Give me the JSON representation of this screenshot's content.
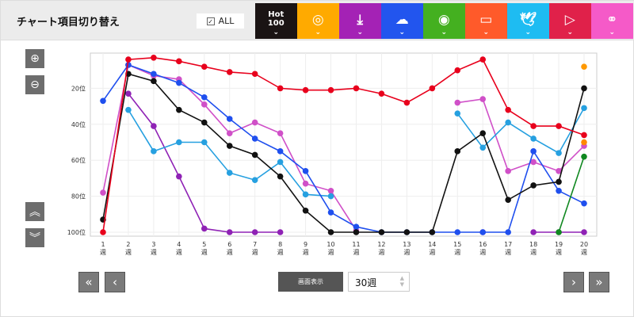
{
  "header": {
    "title": "チャート項目切り替え",
    "all_label": "ALL",
    "all_checked": true
  },
  "tabs": [
    {
      "label": "Hot\n100",
      "icon": "hot100",
      "color": "#1a1414"
    },
    {
      "icon": "cd-icon",
      "color": "#ffaa00"
    },
    {
      "icon": "download-icon",
      "color": "#a422b5"
    },
    {
      "icon": "streaming-icon",
      "color": "#2255ee"
    },
    {
      "icon": "radio-icon",
      "color": "#44b020"
    },
    {
      "icon": "video-cd-icon",
      "color": "#ff5a2a"
    },
    {
      "icon": "twitter-icon",
      "color": "#1ebcf2"
    },
    {
      "icon": "youtube-icon",
      "color": "#e0214a"
    },
    {
      "icon": "lookup-icon",
      "color": "#f55ac8"
    }
  ],
  "controls": {
    "display_label": "画面表示",
    "weeks_value": "30週"
  },
  "chart_data": {
    "type": "line",
    "x": [
      1,
      2,
      3,
      4,
      5,
      6,
      7,
      8,
      9,
      10,
      11,
      12,
      13,
      14,
      15,
      16,
      17,
      18,
      19,
      20
    ],
    "xtick_labels": [
      "1\n週",
      "2\n週",
      "3\n週",
      "4\n週",
      "5\n週",
      "6\n週",
      "7\n週",
      "8\n週",
      "9\n週",
      "10\n週",
      "11\n週",
      "12\n週",
      "13\n週",
      "14\n週",
      "15\n週",
      "16\n週",
      "17\n週",
      "18\n週",
      "19\n週",
      "20\n週"
    ],
    "ytick_labels": [
      "20位",
      "40位",
      "60位",
      "80位",
      "100位"
    ],
    "yticks": [
      20,
      40,
      60,
      80,
      100
    ],
    "ylim": [
      100,
      1
    ],
    "y_inverted": true,
    "grid": true,
    "series": [
      {
        "color": "#8f22b5",
        "values": [
          null,
          23,
          41,
          69,
          98,
          100,
          100,
          100,
          null,
          null,
          null,
          null,
          null,
          null,
          null,
          100,
          null,
          100,
          100,
          100
        ]
      },
      {
        "color": "#d050c8",
        "values": [
          78,
          7,
          13,
          15,
          29,
          45,
          39,
          45,
          73,
          77,
          99,
          null,
          null,
          null,
          28,
          26,
          66,
          61,
          66,
          52
        ]
      },
      {
        "color": "#26a0e0",
        "values": [
          null,
          32,
          55,
          50,
          50,
          67,
          71,
          61,
          79,
          80,
          null,
          null,
          null,
          null,
          34,
          53,
          39,
          48,
          56,
          31
        ]
      },
      {
        "color": "#1f4fee",
        "values": [
          27,
          7,
          12,
          17,
          25,
          37,
          48,
          55,
          66,
          89,
          97,
          100,
          100,
          100,
          100,
          100,
          100,
          55,
          77,
          84
        ]
      },
      {
        "color": "#108820",
        "values": [
          null,
          null,
          null,
          null,
          null,
          null,
          null,
          null,
          null,
          null,
          null,
          null,
          null,
          null,
          null,
          null,
          null,
          null,
          100,
          58
        ]
      },
      {
        "color": "#ff9900",
        "values": [
          null,
          null,
          null,
          null,
          null,
          null,
          null,
          null,
          null,
          null,
          null,
          null,
          null,
          null,
          null,
          null,
          null,
          null,
          null,
          8
        ]
      },
      {
        "color": "#ff8800",
        "values": [
          null,
          null,
          null,
          null,
          null,
          null,
          null,
          null,
          null,
          null,
          null,
          null,
          null,
          null,
          null,
          null,
          null,
          null,
          null,
          50
        ]
      },
      {
        "color": "#111111",
        "values": [
          93,
          12,
          16,
          32,
          39,
          52,
          57,
          69,
          88,
          100,
          100,
          100,
          100,
          100,
          55,
          45,
          82,
          74,
          72,
          20
        ]
      },
      {
        "color": "#e8001c",
        "values": [
          100,
          4,
          3,
          5,
          8,
          11,
          12,
          20,
          21,
          21,
          20,
          23,
          28,
          20,
          10,
          4,
          32,
          41,
          41,
          46
        ]
      }
    ]
  }
}
